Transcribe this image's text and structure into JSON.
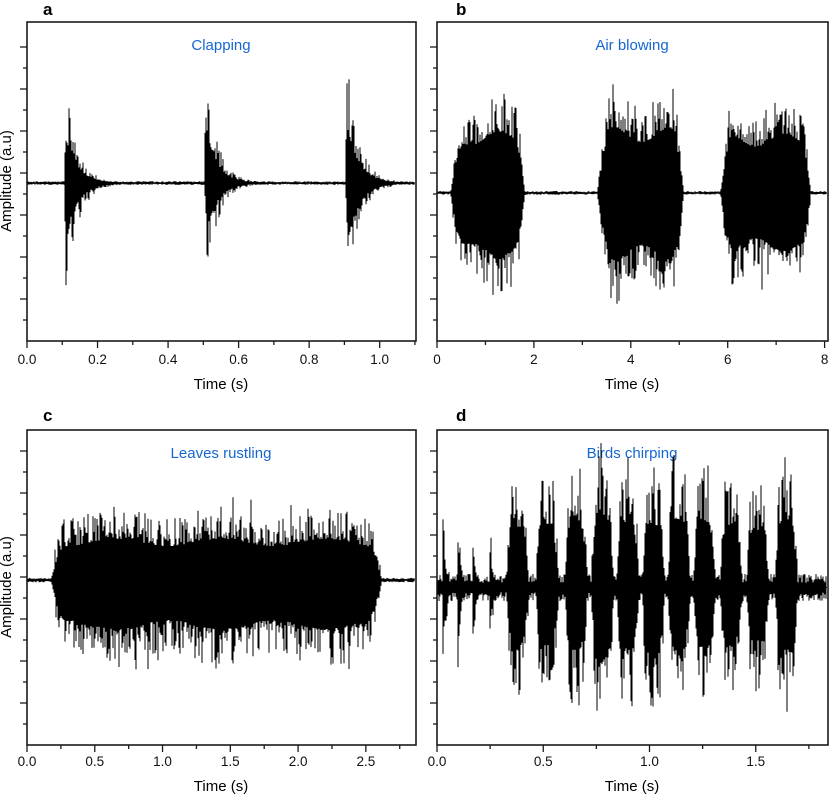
{
  "figure": {
    "background": "#ffffff",
    "title_color": "#1667d3",
    "waveform_color": "#000000",
    "axis_color": "#1a1a1a"
  },
  "chart_data": [
    {
      "id": "a",
      "type": "waveform",
      "panel_label": "a",
      "title": "Clapping",
      "xlabel": "Time (s)",
      "ylabel": "Amplitude (a.u)",
      "x_range": [
        0,
        1.103
      ],
      "x_minor_step": 0.1,
      "x_ticks": [
        {
          "v": 0.0,
          "label": "0.0"
        },
        {
          "v": 0.2,
          "label": "0.2"
        },
        {
          "v": 0.4,
          "label": "0.4"
        },
        {
          "v": 0.6,
          "label": "0.6"
        },
        {
          "v": 0.8,
          "label": "0.8"
        },
        {
          "v": 1.0,
          "label": "1.0"
        }
      ],
      "y_axis_labeled": false,
      "zero_frac": 0.505,
      "signal": {
        "seed": 11,
        "baseline": 0.012,
        "core": 0.45,
        "hair": 0.55,
        "hair_pow": 2.0,
        "bursts": [
          {
            "type": "clap",
            "t": 0.105,
            "attack": 0.005,
            "decay": 0.032,
            "up": 0.6,
            "down": 0.72
          },
          {
            "type": "clap",
            "t": 0.505,
            "attack": 0.005,
            "decay": 0.03,
            "up": 0.68,
            "down": 0.63
          },
          {
            "type": "clap",
            "t": 0.905,
            "attack": 0.005,
            "decay": 0.031,
            "up": 0.74,
            "down": 0.78
          }
        ],
        "spikes": [
          {
            "t": 0.507,
            "up": 0.86,
            "down": 0.3,
            "width": 0.005
          },
          {
            "t": 0.907,
            "up": 0.9,
            "down": 0.4,
            "width": 0.005
          }
        ]
      }
    },
    {
      "id": "b",
      "type": "waveform",
      "panel_label": "b",
      "title": "Air blowing",
      "xlabel": "Time (s)",
      "ylabel": "",
      "x_range": [
        0,
        8.07
      ],
      "x_minor_step": 1,
      "x_ticks": [
        {
          "v": 0,
          "label": "0"
        },
        {
          "v": 2,
          "label": "2"
        },
        {
          "v": 4,
          "label": "4"
        },
        {
          "v": 6,
          "label": "6"
        },
        {
          "v": 8,
          "label": "8"
        }
      ],
      "y_axis_labeled": false,
      "zero_frac": 0.536,
      "signal": {
        "seed": 23,
        "baseline": 0.012,
        "core": 0.6,
        "hair": 0.4,
        "hair_pow": 2.4,
        "wobble": {
          "freq": 0.85,
          "amp": 0.22
        },
        "bursts": [
          {
            "type": "block",
            "t0": 0.28,
            "t1": 1.82,
            "attack": 0.3,
            "release": 0.22,
            "up": 0.62,
            "down": 0.74
          },
          {
            "type": "block",
            "t0": 3.3,
            "t1": 5.1,
            "attack": 0.35,
            "release": 0.28,
            "up": 0.66,
            "down": 0.78
          },
          {
            "type": "block",
            "t0": 5.85,
            "t1": 7.72,
            "attack": 0.28,
            "release": 0.2,
            "up": 0.6,
            "down": 0.68
          }
        ],
        "spikes": [
          {
            "t": 4.12,
            "up": 0.97,
            "down": 0.88,
            "width": 0.05
          },
          {
            "t": 1.05,
            "up": 0.8,
            "down": 0.82,
            "width": 0.05
          },
          {
            "t": 3.95,
            "up": 0.82,
            "down": 0.75,
            "width": 0.04
          },
          {
            "t": 7.55,
            "up": 0.82,
            "down": 0.78,
            "width": 0.04
          }
        ]
      }
    },
    {
      "id": "c",
      "type": "waveform",
      "panel_label": "c",
      "title": "Leaves rustling",
      "xlabel": "Time (s)",
      "ylabel": "Amplitude (a.u)",
      "x_range": [
        0,
        2.87
      ],
      "x_minor_step": 0.25,
      "x_ticks": [
        {
          "v": 0.0,
          "label": "0.0"
        },
        {
          "v": 0.5,
          "label": "0.5"
        },
        {
          "v": 1.0,
          "label": "1.0"
        },
        {
          "v": 1.5,
          "label": "1.5"
        },
        {
          "v": 2.0,
          "label": "2.0"
        },
        {
          "v": 2.5,
          "label": "2.5"
        }
      ],
      "y_axis_labeled": false,
      "zero_frac": 0.476,
      "signal": {
        "seed": 37,
        "baseline": 0.015,
        "core": 0.55,
        "hair": 0.45,
        "hair_pow": 2.2,
        "wobble": {
          "freq": 1.3,
          "amp": 0.18
        },
        "bursts": [
          {
            "type": "block",
            "t0": 0.18,
            "t1": 2.62,
            "attack": 0.1,
            "release": 0.12,
            "up": 0.52,
            "down": 0.56
          }
        ],
        "spikes": [
          {
            "t": 0.8,
            "up": 0.97,
            "down": 0.85,
            "width": 0.03
          },
          {
            "t": 1.52,
            "up": 0.72,
            "down": 0.97,
            "width": 0.03
          },
          {
            "t": 0.55,
            "up": 0.8,
            "down": 0.7,
            "width": 0.02
          },
          {
            "t": 1.15,
            "up": 0.85,
            "down": 0.78,
            "width": 0.02
          },
          {
            "t": 1.65,
            "up": 0.78,
            "down": 0.72,
            "width": 0.02
          },
          {
            "t": 2.1,
            "up": 0.72,
            "down": 0.66,
            "width": 0.02
          }
        ]
      }
    },
    {
      "id": "d",
      "type": "waveform",
      "panel_label": "d",
      "title": "Birds chirping",
      "xlabel": "Time (s)",
      "ylabel": "",
      "x_range": [
        0,
        1.84
      ],
      "x_minor_step": 0.25,
      "x_ticks": [
        {
          "v": 0.0,
          "label": "0.0"
        },
        {
          "v": 0.5,
          "label": "0.5"
        },
        {
          "v": 1.0,
          "label": "1.0"
        },
        {
          "v": 1.5,
          "label": "1.5"
        }
      ],
      "y_axis_labeled": false,
      "zero_frac": 0.5,
      "signal": {
        "seed": 51,
        "baseline": 0.09,
        "core": 0.5,
        "hair": 0.5,
        "hair_pow": 2.0,
        "bursts": [
          {
            "type": "clap",
            "t": 0.025,
            "attack": 0.004,
            "decay": 0.014,
            "up": 0.55,
            "down": 0.62
          },
          {
            "type": "clap",
            "t": 0.095,
            "attack": 0.004,
            "decay": 0.013,
            "up": 0.58,
            "down": 0.64
          },
          {
            "type": "clap",
            "t": 0.165,
            "attack": 0.004,
            "decay": 0.013,
            "up": 0.52,
            "down": 0.58
          },
          {
            "type": "clap",
            "t": 0.245,
            "attack": 0.004,
            "decay": 0.012,
            "up": 0.46,
            "down": 0.52
          },
          {
            "type": "block",
            "t0": 0.325,
            "t1": 0.435,
            "attack": 0.03,
            "release": 0.04,
            "up": 0.8,
            "down": 0.72
          },
          {
            "type": "block",
            "t0": 0.465,
            "t1": 0.575,
            "attack": 0.03,
            "release": 0.04,
            "up": 0.84,
            "down": 0.76
          },
          {
            "type": "block",
            "t0": 0.6,
            "t1": 0.71,
            "attack": 0.03,
            "release": 0.04,
            "up": 0.88,
            "down": 0.8
          },
          {
            "type": "block",
            "t0": 0.725,
            "t1": 0.835,
            "attack": 0.03,
            "release": 0.04,
            "up": 0.96,
            "down": 0.92
          },
          {
            "type": "block",
            "t0": 0.845,
            "t1": 0.955,
            "attack": 0.03,
            "release": 0.04,
            "up": 0.86,
            "down": 0.8
          },
          {
            "type": "block",
            "t0": 0.965,
            "t1": 1.075,
            "attack": 0.03,
            "release": 0.04,
            "up": 0.82,
            "down": 0.86
          },
          {
            "type": "block",
            "t0": 1.085,
            "t1": 1.195,
            "attack": 0.03,
            "release": 0.04,
            "up": 0.9,
            "down": 0.8
          },
          {
            "type": "block",
            "t0": 1.205,
            "t1": 1.315,
            "attack": 0.03,
            "release": 0.04,
            "up": 0.86,
            "down": 0.78
          },
          {
            "type": "block",
            "t0": 1.33,
            "t1": 1.44,
            "attack": 0.03,
            "release": 0.04,
            "up": 0.8,
            "down": 0.72
          },
          {
            "type": "block",
            "t0": 1.455,
            "t1": 1.565,
            "attack": 0.03,
            "release": 0.04,
            "up": 0.76,
            "down": 0.7
          },
          {
            "type": "block",
            "t0": 1.59,
            "t1": 1.7,
            "attack": 0.03,
            "release": 0.04,
            "up": 0.88,
            "down": 0.82
          }
        ],
        "spikes": [
          {
            "t": 0.78,
            "up": 0.99,
            "down": 0.9,
            "width": 0.01
          },
          {
            "t": 1.64,
            "up": 0.92,
            "down": 0.8,
            "width": 0.01
          }
        ]
      }
    }
  ]
}
